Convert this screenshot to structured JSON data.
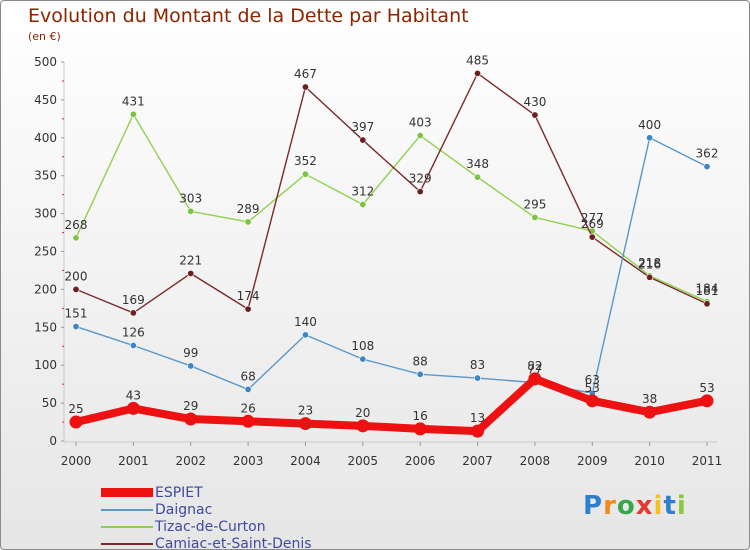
{
  "header": {
    "title": "Evolution du Montant de la Dette par Habitant",
    "unit": "(en €)"
  },
  "logo": {
    "text": "Proxiti",
    "letters": [
      "P",
      "r",
      "o",
      "x",
      "i",
      "t",
      "i"
    ],
    "colors": [
      "#2f7fd0",
      "#f08a1e",
      "#3aa64a",
      "#e2392f",
      "#f4c21a",
      "#2f7fd0",
      "#8ec63f"
    ]
  },
  "chart_data": {
    "type": "line",
    "title": "Evolution du Montant de la Dette par Habitant",
    "subtitle": "(en €)",
    "x": [
      "2000",
      "2001",
      "2002",
      "2003",
      "2004",
      "2005",
      "2006",
      "2007",
      "2008",
      "2009",
      "2010",
      "2011"
    ],
    "yticks": [
      0,
      50,
      100,
      150,
      200,
      250,
      300,
      350,
      400,
      450,
      500
    ],
    "ylim": [
      0,
      500
    ],
    "grid": false,
    "legend_position": "bottom-left",
    "series": [
      {
        "name": "Tizac-de-Curton",
        "color": "#8fd14f",
        "point_color": "#7ec443",
        "values": [
          268,
          431,
          303,
          289,
          352,
          312,
          403,
          348,
          295,
          277,
          218,
          184
        ],
        "labels": [
          "268",
          "431",
          "303",
          "289",
          "352",
          "312",
          "403",
          "348",
          "295",
          "277",
          "218",
          "184"
        ],
        "highlight": false
      },
      {
        "name": "Camiac-et-Saint-Denis",
        "color": "#7a2a2a",
        "point_color": "#6b1f1f",
        "values": [
          200,
          169,
          221,
          174,
          467,
          397,
          329,
          485,
          430,
          269,
          216,
          181
        ],
        "labels": [
          "200",
          "169",
          "221",
          "174",
          "467",
          "397",
          "329",
          "485",
          "430",
          "269",
          "216",
          "181"
        ],
        "highlight": false
      },
      {
        "name": "Daignac",
        "color": "#5a97c9",
        "point_color": "#3f86c6",
        "values": [
          151,
          126,
          99,
          68,
          140,
          108,
          88,
          83,
          77,
          63,
          400,
          362
        ],
        "labels": [
          "151",
          "126",
          "99",
          "68",
          "140",
          "108",
          "88",
          "83",
          "77",
          "63",
          "400",
          "362"
        ],
        "highlight": false
      },
      {
        "name": "ESPIET",
        "color": "#ee1111",
        "point_color": "#ee1111",
        "values": [
          25,
          43,
          29,
          26,
          23,
          20,
          16,
          13,
          82,
          53,
          38,
          53
        ],
        "labels": [
          "25",
          "43",
          "29",
          "26",
          "23",
          "20",
          "16",
          "13",
          "82",
          "53",
          "38",
          "53"
        ],
        "highlight": true
      }
    ],
    "legend": [
      "ESPIET",
      "Daignac",
      "Tizac-de-Curton",
      "Camiac-et-Saint-Denis"
    ]
  }
}
